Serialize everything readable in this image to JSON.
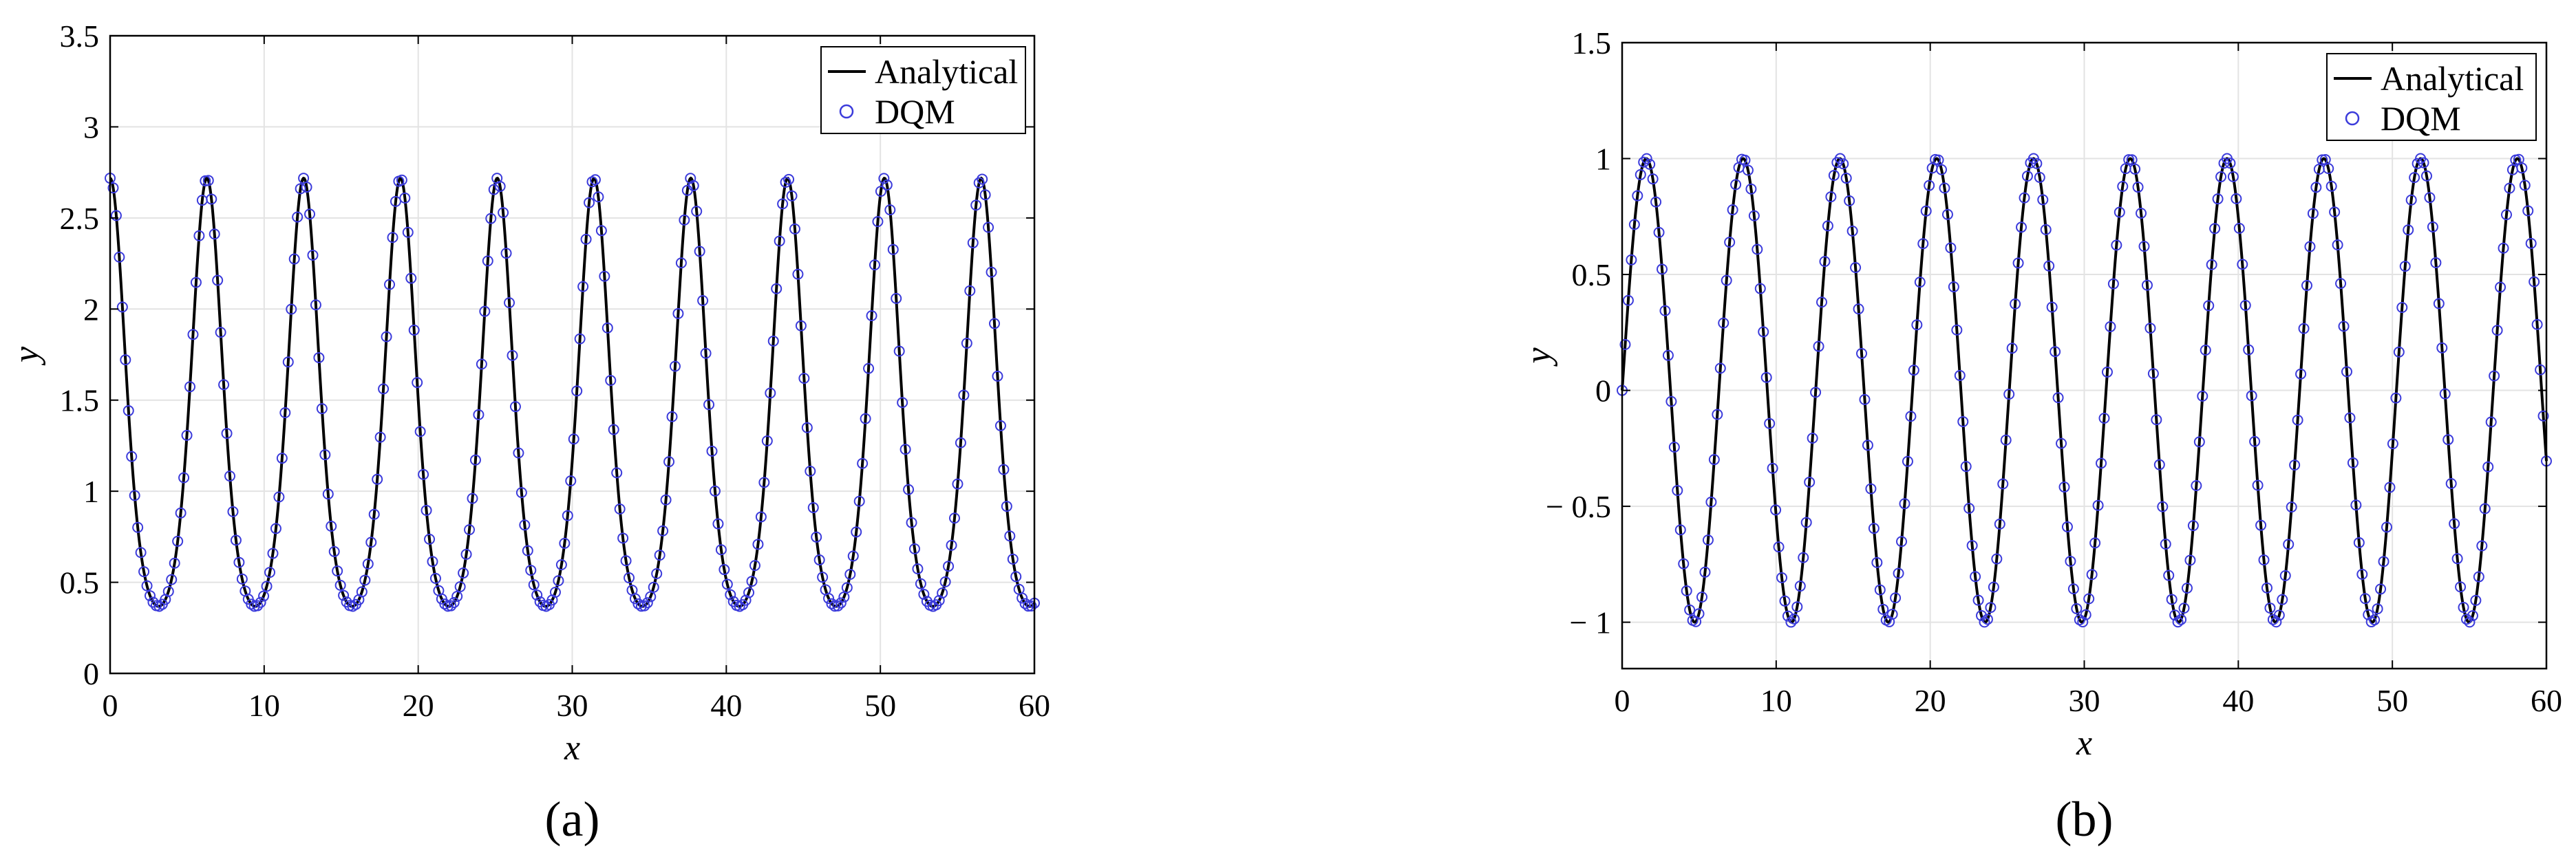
{
  "chart_data": [
    {
      "type": "line",
      "panel_label": "(a)",
      "xlabel": "x",
      "ylabel": "y",
      "xlim": [
        0,
        60
      ],
      "ylim": [
        0,
        3.5
      ],
      "xticks": [
        "0",
        "10",
        "20",
        "30",
        "40",
        "50",
        "60"
      ],
      "yticks": [
        "0",
        "0.5",
        "1",
        "1.5",
        "2",
        "2.5",
        "3",
        "3.5"
      ],
      "grid": true,
      "legend_position": "top-right",
      "series": [
        {
          "name": "Analytical",
          "style": "line",
          "color": "#000000",
          "function": "exp(cos(x))",
          "samples": 1200
        },
        {
          "name": "DQM",
          "style": "circle-markers",
          "color": "#3b3bdb",
          "function": "exp(cos(x))",
          "samples": 301
        }
      ]
    },
    {
      "type": "line",
      "panel_label": "(b)",
      "xlabel": "x",
      "ylabel": "y",
      "xlim": [
        0,
        60
      ],
      "ylim": [
        -1.2,
        1.5
      ],
      "xticks": [
        "0",
        "10",
        "20",
        "30",
        "40",
        "50",
        "60"
      ],
      "yticks": [
        "− 1",
        "− 0.5",
        "0",
        "0.5",
        "1",
        "1.5"
      ],
      "ytick_values": [
        -1,
        -0.5,
        0,
        0.5,
        1,
        1.5
      ],
      "grid": true,
      "legend_position": "top-right",
      "series": [
        {
          "name": "Analytical",
          "style": "line",
          "color": "#000000",
          "function": "sin(x)",
          "samples": 1200
        },
        {
          "name": "DQM",
          "style": "circle-markers",
          "color": "#3b3bdb",
          "function": "sin(x)",
          "samples": 301
        }
      ]
    }
  ]
}
